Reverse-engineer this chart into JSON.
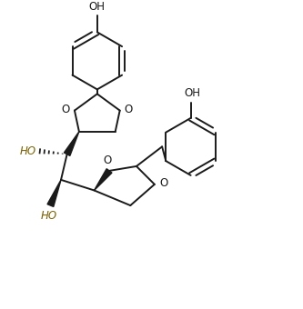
{
  "bg_color": "#ffffff",
  "line_color": "#1a1a1a",
  "oh_color": "#7a6000",
  "figsize": [
    3.33,
    3.4
  ],
  "dpi": 100,
  "xlim": [
    0,
    10
  ],
  "ylim": [
    0,
    10
  ]
}
